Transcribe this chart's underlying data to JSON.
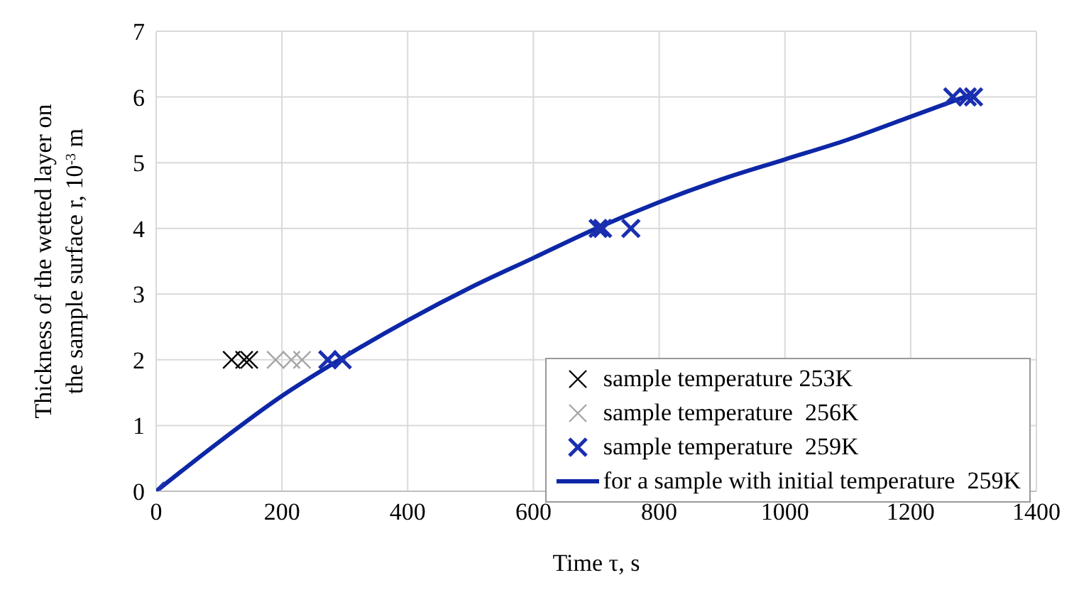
{
  "chart_data": {
    "type": "scatter",
    "xlabel": "Time τ, s",
    "ylabel": "Thickness of the wetted layer on\nthe sample surface  r, 10$^{-3}$ m",
    "xlim": [
      0,
      1400
    ],
    "xticks": [
      0,
      200,
      400,
      600,
      800,
      1000,
      1200,
      1400
    ],
    "ylim": [
      0,
      7
    ],
    "yticks": [
      0,
      1,
      2,
      3,
      4,
      5,
      6,
      7
    ],
    "grid": true,
    "legend": "bottom right",
    "marker": "cross",
    "series": [
      {
        "name": "sample temperature 253K",
        "color": "#000000",
        "x": [
          120,
          140,
          148
        ],
        "values": [
          2,
          2,
          2
        ]
      },
      {
        "name": "sample temperature  256K",
        "color": "#a6a6a6",
        "x": [
          190,
          215,
          232
        ],
        "values": [
          2,
          2,
          2
        ]
      },
      {
        "name": "sample temperature  259K",
        "color": "#1a2fb0",
        "x": [
          0,
          273,
          296,
          703,
          710,
          755,
          1267,
          1290,
          1300
        ],
        "values": [
          0,
          2,
          2,
          4,
          4,
          4,
          6,
          6,
          6
        ]
      },
      {
        "name": "for a sample with initial temperature  259K",
        "type": "line",
        "marker": "none",
        "color": "#0d27a6",
        "x": [
          0,
          100,
          200,
          300,
          400,
          500,
          600,
          700,
          800,
          900,
          1000,
          1100,
          1200,
          1300
        ],
        "values": [
          0,
          0.75,
          1.45,
          2.05,
          2.6,
          3.1,
          3.55,
          4.0,
          4.4,
          4.75,
          5.05,
          5.35,
          5.7,
          6.05
        ]
      }
    ]
  }
}
